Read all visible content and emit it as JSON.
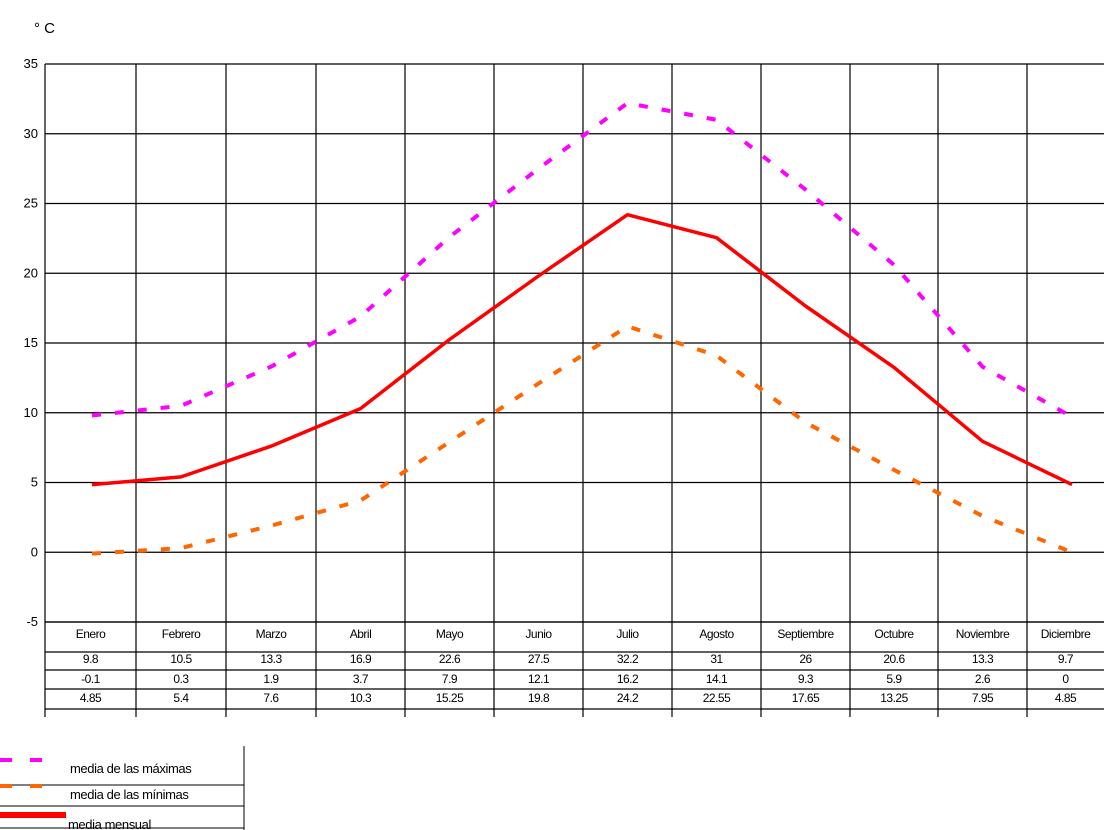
{
  "chart_data": {
    "type": "line",
    "ylabel": "° C",
    "ylim": [
      -5,
      35
    ],
    "y_ticks": [
      "35",
      "30",
      "25",
      "20",
      "15",
      "10",
      "5",
      "0",
      "-5"
    ],
    "categories": [
      "Enero",
      "Febrero",
      "Marzo",
      "Abril",
      "Mayo",
      "Junio",
      "Julio",
      "Agosto",
      "Septiembre",
      "Octubre",
      "Noviembre",
      "Diciembre"
    ],
    "grid": true,
    "legend_position": "bottom-left",
    "series": [
      {
        "name": "media de las máximas",
        "color": "#ff00ff",
        "style": "dashed",
        "values": [
          9.8,
          10.5,
          13.3,
          16.9,
          22.6,
          27.5,
          32.2,
          31,
          26,
          20.6,
          13.3,
          9.7
        ],
        "labels": [
          "9.8",
          "10.5",
          "13.3",
          "16.9",
          "22.6",
          "27.5",
          "32.2",
          "31",
          "26",
          "20.6",
          "13.3",
          "9.7"
        ]
      },
      {
        "name": "media de las mínimas",
        "color": "#ff6600",
        "style": "dashed",
        "values": [
          -0.1,
          0.3,
          1.9,
          3.7,
          7.9,
          12.1,
          16.2,
          14.1,
          9.3,
          5.9,
          2.6,
          0
        ],
        "labels": [
          "-0.1",
          "0.3",
          "1.9",
          "3.7",
          "7.9",
          "12.1",
          "16.2",
          "14.1",
          "9.3",
          "5.9",
          "2.6",
          "0"
        ]
      },
      {
        "name": "media mensual",
        "color": "#ff0000",
        "style": "solid",
        "values": [
          4.85,
          5.4,
          7.6,
          10.3,
          15.25,
          19.8,
          24.2,
          22.55,
          17.65,
          13.25,
          7.95,
          4.85
        ],
        "labels": [
          "4.85",
          "5.4",
          "7.6",
          "10.3",
          "15.25",
          "19.8",
          "24.2",
          "22.55",
          "17.65",
          "13.25",
          "7.95",
          "4.85"
        ]
      }
    ]
  }
}
